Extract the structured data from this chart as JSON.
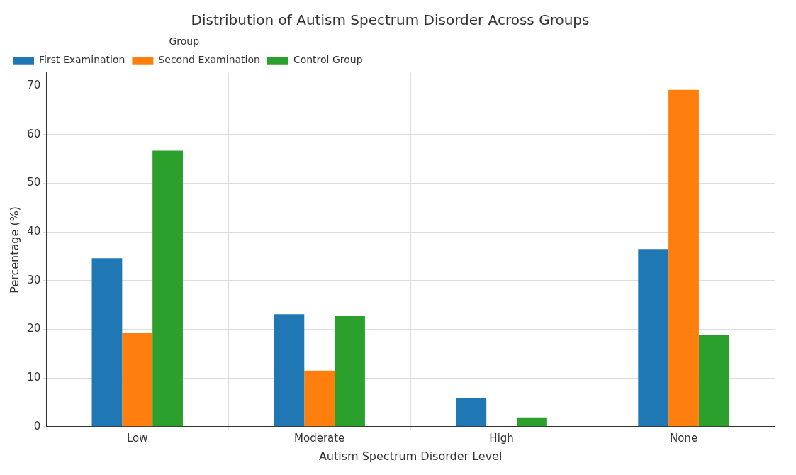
{
  "chart_data": {
    "type": "bar",
    "title": "Distribution of Autism Spectrum Disorder Across Groups",
    "xlabel": "Autism Spectrum Disorder Level",
    "ylabel": "Percentage (%)",
    "legend_title": "Group",
    "categories": [
      "Low",
      "Moderate",
      "High",
      "None"
    ],
    "series": [
      {
        "name": "First Examination",
        "color": "#1f77b4",
        "values": [
          34.6,
          23.1,
          5.8,
          36.5
        ]
      },
      {
        "name": "Second Examination",
        "color": "#ff7f0e",
        "values": [
          19.2,
          11.5,
          0,
          69.2
        ]
      },
      {
        "name": "Control Group",
        "color": "#2ca02c",
        "values": [
          56.7,
          22.7,
          1.9,
          18.9
        ]
      }
    ],
    "ylim": [
      0,
      72.7
    ],
    "yticks": [
      0,
      10,
      20,
      30,
      40,
      50,
      60,
      70
    ],
    "grid": true,
    "legend": "top left"
  }
}
